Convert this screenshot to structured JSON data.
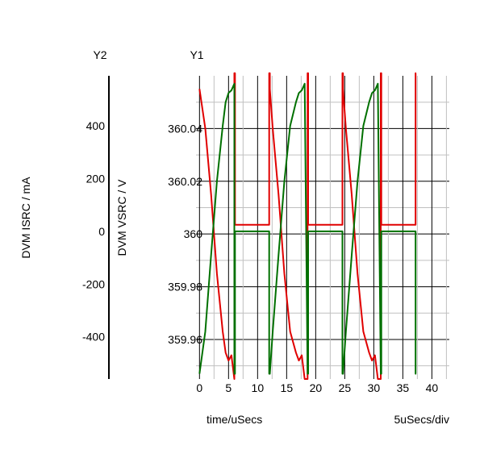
{
  "chart_data": {
    "type": "line",
    "y1_header": "Y1",
    "y2_header": "Y2",
    "xlabel": "time/uSecs",
    "x_division_label": "5uSecs/div",
    "y1_label": "DVM VSRC / V",
    "y2_label": "DVM ISRC / mA",
    "grid": true,
    "xlim": [
      -0.6,
      43
    ],
    "x_ticks": [
      0,
      5,
      10,
      15,
      20,
      25,
      30,
      35,
      40
    ],
    "x_tick_labels": [
      "0",
      "5",
      "10",
      "15",
      "20",
      "25",
      "30",
      "35",
      "40"
    ],
    "y1lim": [
      359.945,
      360.06
    ],
    "y1_ticks": [
      359.96,
      359.98,
      360.0,
      360.02,
      360.04
    ],
    "y1_tick_labels": [
      "359.96",
      "359.98",
      "360",
      "360.02",
      "360.04"
    ],
    "y2lim": [
      -560,
      590
    ],
    "y2_ticks": [
      -400,
      -200,
      0,
      200,
      400
    ],
    "y2_tick_labels": [
      "-400",
      "-200",
      "0",
      "200",
      "400"
    ],
    "series": [
      {
        "name": "DVM VSRC / V",
        "axis": "y1",
        "color": "#e00000",
        "x": [
          0,
          1,
          2,
          3,
          4,
          4.5,
          5,
          5.5,
          6,
          6,
          6.1,
          6.1,
          12,
          12,
          12.1,
          12.1,
          12.6,
          13.6,
          14.6,
          15.6,
          16.6,
          17.1,
          17.6,
          18.1,
          18.6,
          18.6,
          18.7,
          18.7,
          24.6,
          24.6,
          24.7,
          24.7,
          25.2,
          26.2,
          27.2,
          28.2,
          29.2,
          29.7,
          30.2,
          30.7,
          31.2,
          31.2,
          31.3,
          31.3,
          37.2,
          37.2,
          37.3,
          37.3
        ],
        "y": [
          360.055,
          360.04,
          360.015,
          359.985,
          359.963,
          359.955,
          359.952,
          359.954,
          359.945,
          360.061,
          360.061,
          360.0035,
          360.0035,
          360.061,
          360.061,
          360.055,
          360.04,
          360.015,
          359.985,
          359.963,
          359.955,
          359.952,
          359.954,
          359.945,
          359.945,
          360.061,
          360.061,
          360.0035,
          360.0035,
          360.061,
          360.061,
          360.055,
          360.04,
          360.015,
          359.985,
          359.963,
          359.955,
          359.952,
          359.954,
          359.945,
          359.945,
          360.061,
          360.061,
          360.0035,
          360.0035,
          360.061,
          360.061,
          360.061
        ]
      },
      {
        "name": "DVM ISRC / mA",
        "axis": "y2",
        "color": "#007000",
        "x": [
          0,
          1,
          2,
          3,
          4,
          4.5,
          5,
          5.5,
          6,
          6,
          6.1,
          6.1,
          12,
          12,
          12.1,
          12.1,
          12.6,
          13.6,
          14.6,
          15.6,
          16.6,
          17.1,
          17.6,
          18.1,
          18.6,
          18.6,
          18.7,
          18.7,
          24.6,
          24.6,
          24.7,
          24.7,
          25.2,
          26.2,
          27.2,
          28.2,
          29.2,
          29.7,
          30.2,
          30.7,
          31.2,
          31.2,
          31.3,
          31.3,
          37.2,
          37.2,
          37.3,
          37.3
        ],
        "y": [
          -540,
          -380,
          -90,
          190,
          400,
          490,
          525,
          535,
          560,
          -540,
          -540,
          0,
          0,
          -540,
          -540,
          -540,
          -380,
          -90,
          190,
          400,
          490,
          525,
          535,
          560,
          -540,
          -540,
          -540,
          0,
          0,
          -540,
          -540,
          -540,
          -380,
          -90,
          190,
          400,
          490,
          525,
          535,
          560,
          -540,
          -540,
          -540,
          0,
          0,
          -540,
          -540,
          -540
        ]
      }
    ]
  }
}
